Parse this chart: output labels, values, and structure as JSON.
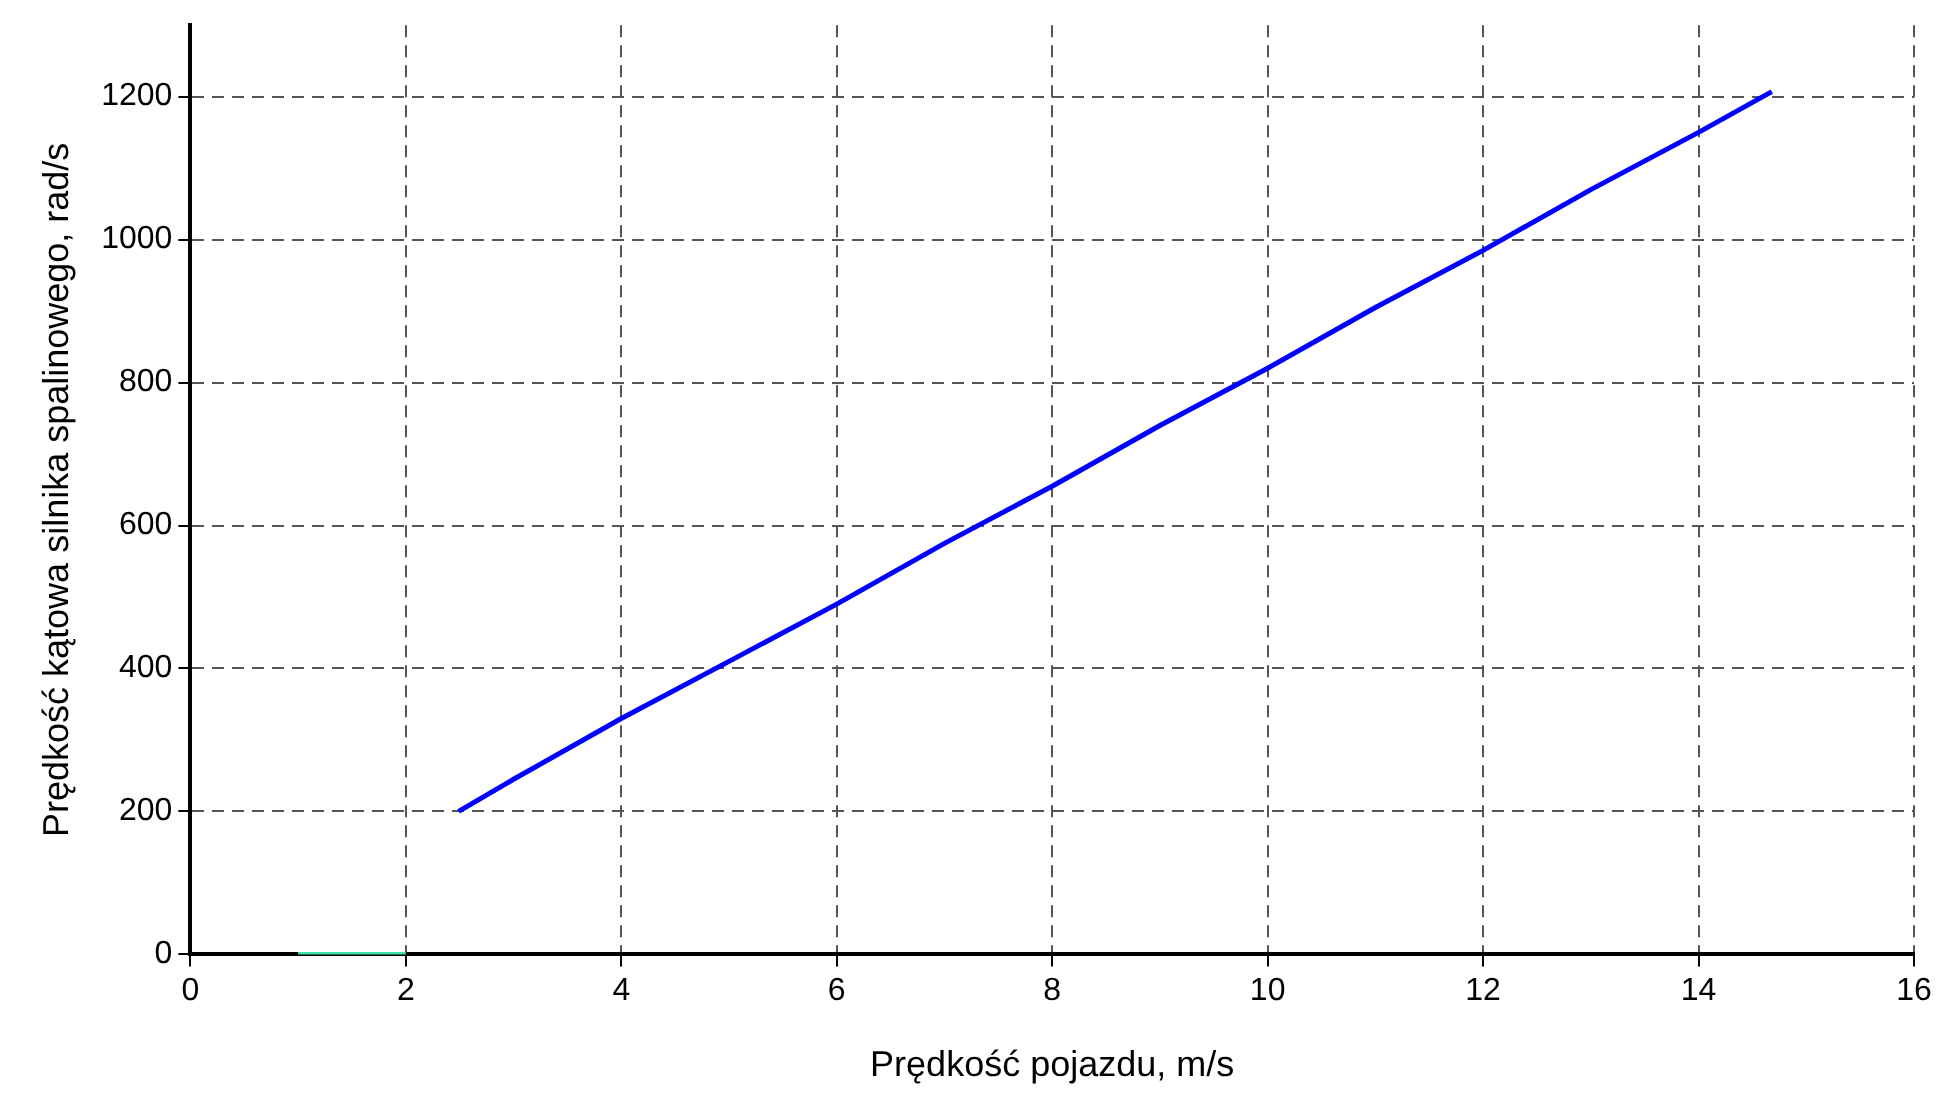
{
  "chart_data": {
    "type": "line",
    "xlabel": "Prędkość pojazdu, m/s",
    "ylabel": "Prędkość kątowa silnika spalinowego, rad/s",
    "xlim": [
      0,
      16
    ],
    "ylim": [
      0,
      1300
    ],
    "xticks": [
      0,
      2,
      4,
      6,
      8,
      10,
      12,
      14,
      16
    ],
    "yticks": [
      0,
      200,
      400,
      600,
      800,
      1000,
      1200
    ],
    "grid": true,
    "series": [
      {
        "color": "#0000ff",
        "x": [
          2.49,
          3,
          4,
          5,
          6,
          7,
          8,
          9,
          10,
          11,
          12,
          13,
          14,
          14.68
        ],
        "values": [
          200,
          245,
          330,
          410,
          490,
          575,
          655,
          740,
          820,
          905,
          985,
          1070,
          1150,
          1207
        ]
      },
      {
        "color": "#40e0b0",
        "x": [
          1,
          2
        ],
        "values": [
          0,
          0
        ]
      }
    ]
  }
}
